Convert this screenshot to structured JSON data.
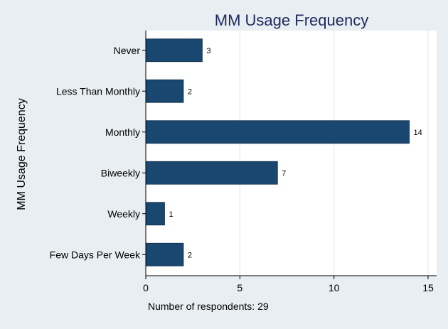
{
  "chart_data": {
    "type": "bar",
    "orientation": "horizontal",
    "title": "MM Usage Frequency",
    "ylabel": "MM Usage Frequency",
    "note": "Number of respondents: 29",
    "categories": [
      "Never",
      "Less Than Monthly",
      "Monthly",
      "Biweekly",
      "Weekly",
      "Few Days Per Week"
    ],
    "values": [
      3,
      2,
      14,
      7,
      1,
      2
    ],
    "value_labels": [
      "3",
      "2",
      "14",
      "7",
      "1",
      "2"
    ],
    "xlim": [
      0,
      15.5
    ],
    "xticks": [
      0,
      5,
      10,
      15
    ],
    "xtick_labels": [
      "0",
      "5",
      "10",
      "15"
    ],
    "grid": true,
    "colors": {
      "background": "#e8eef1",
      "plot_background": "#ffffff",
      "bar": "#1a476f",
      "bar_edge": "#0d2c47",
      "title": "#1e2b5e",
      "grid": "#e5eaee",
      "text": "#000000"
    }
  }
}
